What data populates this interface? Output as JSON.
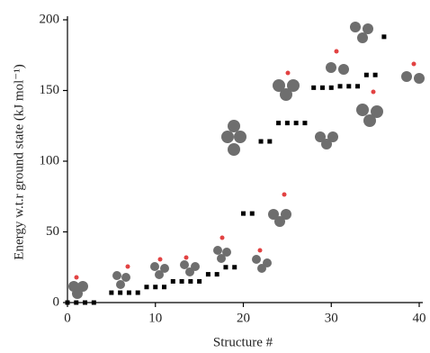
{
  "chart_data": {
    "type": "scatter",
    "x_label": "Structure #",
    "y_label": "Energy w.t.r ground state (kJ mol⁻¹)",
    "x": [
      0,
      1,
      2,
      3,
      5,
      6,
      7,
      8,
      9,
      10,
      11,
      12,
      13,
      14,
      15,
      16,
      17,
      18,
      19,
      20,
      21,
      22,
      23,
      24,
      25,
      26,
      27,
      28,
      29,
      30,
      31,
      32,
      33,
      34,
      35,
      36
    ],
    "values": [
      0,
      0,
      0,
      0,
      7,
      7,
      7,
      7,
      11,
      11,
      11,
      15,
      15,
      15,
      15,
      20,
      20,
      25,
      25,
      63,
      63,
      114,
      114,
      127,
      127,
      127,
      127,
      152,
      152,
      152,
      153,
      153,
      153,
      161,
      161,
      188
    ],
    "color": "#000000",
    "xlim": [
      0,
      40
    ],
    "xticks": [
      0,
      10,
      20,
      30,
      40
    ],
    "ylim": [
      0,
      200
    ],
    "yticks": [
      0,
      50,
      100,
      150,
      200
    ]
  }
}
